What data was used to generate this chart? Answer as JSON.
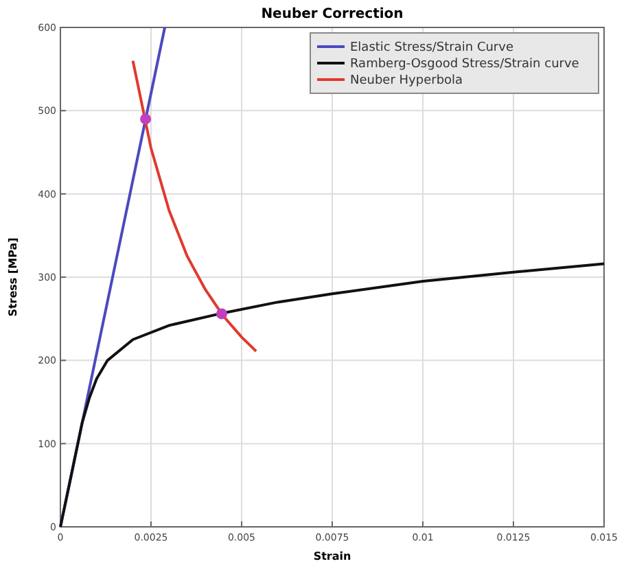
{
  "chart_data": {
    "type": "line",
    "title": "Neuber Correction",
    "xlabel": "Strain",
    "ylabel": "Stress [MPa]",
    "xlim": [
      0,
      0.015
    ],
    "ylim": [
      0,
      600
    ],
    "xticks": [
      0,
      0.0025,
      0.005,
      0.0075,
      0.01,
      0.0125,
      0.015
    ],
    "yticks": [
      0,
      100,
      200,
      300,
      400,
      500,
      600
    ],
    "grid": true,
    "legend": "top right",
    "series": [
      {
        "name": "Elastic Stress/Strain Curve",
        "color": "#4a4ac0",
        "x": [
          0,
          0.00288
        ],
        "values": [
          0,
          600
        ]
      },
      {
        "name": "Ramberg-Osgood Stress/Strain curve",
        "color": "#111111",
        "x": [
          0,
          0.0003,
          0.0006,
          0.0008,
          0.001,
          0.0013,
          0.002,
          0.003,
          0.0045,
          0.006,
          0.0075,
          0.01,
          0.0125,
          0.015
        ],
        "values": [
          0,
          62,
          125,
          155,
          178,
          200,
          225,
          242,
          257,
          270,
          280,
          295,
          306,
          316
        ]
      },
      {
        "name": "Neuber Hyperbola",
        "color": "#e03a2e",
        "x": [
          0.002,
          0.0025,
          0.003,
          0.0035,
          0.004,
          0.0045,
          0.005,
          0.0054
        ],
        "values": [
          560,
          455,
          380,
          325,
          285,
          253,
          228,
          211
        ]
      },
      {
        "type": "scatter",
        "color": "#c040c0",
        "marker": "circle",
        "x": [
          0.00235,
          0.00445
        ],
        "values": [
          490,
          256
        ]
      }
    ]
  }
}
